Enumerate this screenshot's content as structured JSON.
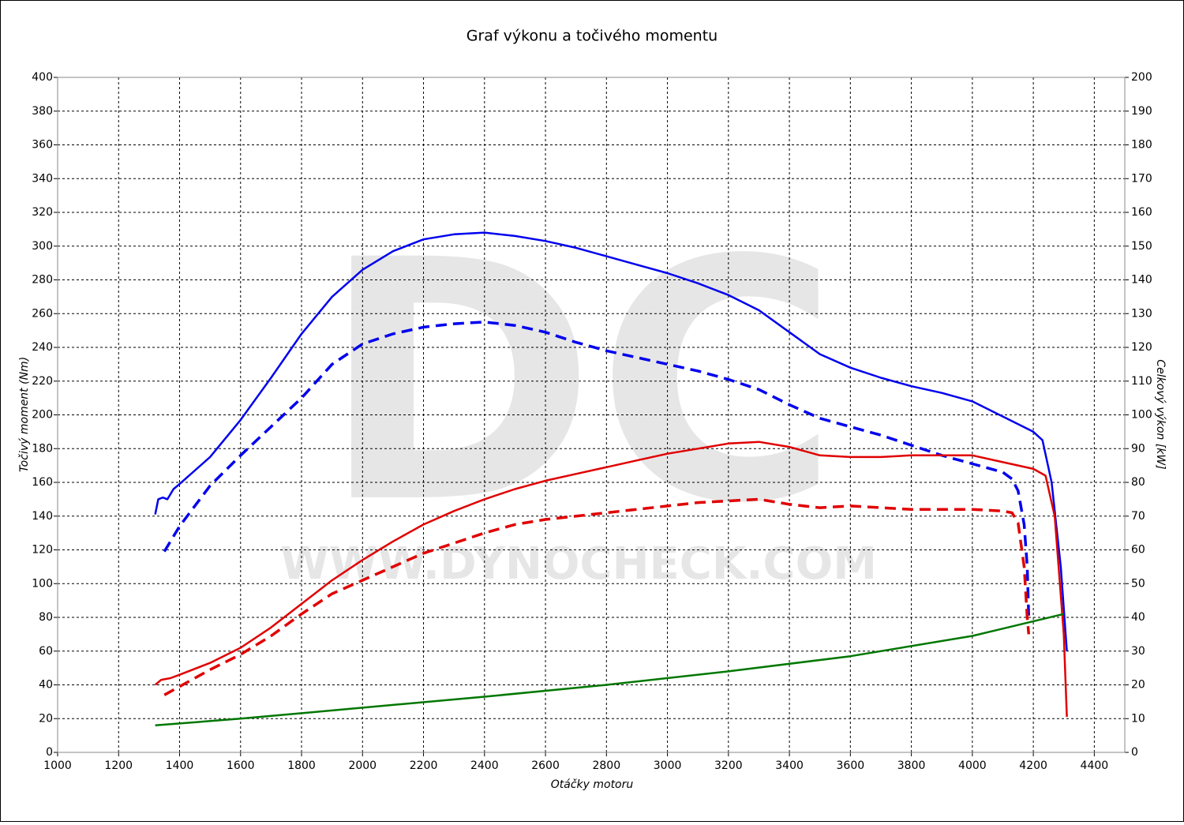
{
  "chart_data": {
    "type": "line",
    "title": "Graf výkonu a točivého momentu",
    "xlabel": "Otáčky motoru",
    "ylabel": "Točivý moment (Nm)",
    "y2label": "Celkový výkon [kW]",
    "watermark": [
      "DC",
      "WWW.DYNOCHECK.COM"
    ],
    "xlim": [
      1000,
      4500
    ],
    "ylim": [
      0,
      400
    ],
    "y2lim": [
      0,
      200
    ],
    "xticks": [
      1000,
      1200,
      1400,
      1600,
      1800,
      2000,
      2200,
      2400,
      2600,
      2800,
      3000,
      3200,
      3400,
      3600,
      3800,
      4000,
      4200,
      4400
    ],
    "yticks": [
      0,
      20,
      40,
      60,
      80,
      100,
      120,
      140,
      160,
      180,
      200,
      220,
      240,
      260,
      280,
      300,
      320,
      340,
      360,
      380,
      400
    ],
    "y2ticks": [
      0,
      10,
      20,
      30,
      40,
      50,
      60,
      70,
      80,
      90,
      100,
      110,
      120,
      130,
      140,
      150,
      160,
      170,
      180,
      190,
      200
    ],
    "grid": true,
    "series": [
      {
        "color": "#0000ee",
        "dashed": false,
        "axis": "y",
        "x": [
          1320,
          1330,
          1345,
          1360,
          1380,
          1400,
          1450,
          1500,
          1600,
          1700,
          1800,
          1900,
          2000,
          2100,
          2200,
          2300,
          2400,
          2500,
          2600,
          2700,
          2800,
          2900,
          3000,
          3100,
          3200,
          3300,
          3400,
          3500,
          3600,
          3700,
          3800,
          3900,
          4000,
          4100,
          4200,
          4230,
          4260,
          4290,
          4310
        ],
        "values": [
          141,
          150,
          151,
          150,
          156,
          159,
          167,
          175,
          197,
          222,
          248,
          270,
          286,
          297,
          304,
          307,
          308,
          306,
          303,
          299,
          294,
          289,
          284,
          278,
          271,
          262,
          249,
          236,
          228,
          222,
          217,
          213,
          208,
          199,
          190,
          185,
          160,
          110,
          60
        ]
      },
      {
        "color": "#0000ee",
        "dashed": true,
        "axis": "y",
        "x": [
          1350,
          1400,
          1500,
          1600,
          1700,
          1800,
          1900,
          2000,
          2100,
          2200,
          2300,
          2400,
          2500,
          2600,
          2700,
          2800,
          2900,
          3000,
          3100,
          3200,
          3300,
          3400,
          3500,
          3600,
          3700,
          3800,
          3900,
          4000,
          4100,
          4130,
          4150,
          4170,
          4180,
          4185
        ],
        "values": [
          119,
          134,
          158,
          176,
          193,
          210,
          230,
          242,
          248,
          252,
          254,
          255,
          253,
          249,
          243,
          238,
          234,
          230,
          226,
          221,
          215,
          206,
          198,
          193,
          188,
          182,
          176,
          171,
          166,
          162,
          155,
          135,
          110,
          80
        ]
      },
      {
        "color": "#e00000",
        "dashed": false,
        "axis": "y2",
        "x": [
          1320,
          1340,
          1370,
          1400,
          1500,
          1600,
          1700,
          1800,
          1900,
          2000,
          2100,
          2200,
          2300,
          2400,
          2500,
          2600,
          2700,
          2800,
          2900,
          3000,
          3100,
          3200,
          3300,
          3400,
          3500,
          3600,
          3700,
          3800,
          3900,
          4000,
          4100,
          4200,
          4240,
          4270,
          4300,
          4310
        ],
        "values": [
          20,
          21.5,
          22,
          23,
          26.5,
          31,
          37,
          44,
          51,
          57,
          62.5,
          67.5,
          71.5,
          75,
          78,
          80.5,
          82.5,
          84.5,
          86.5,
          88.5,
          90,
          91.5,
          92,
          90.5,
          88,
          87.5,
          87.5,
          88,
          88,
          88,
          86,
          84,
          82,
          70,
          35,
          10.5
        ]
      },
      {
        "color": "#e00000",
        "dashed": true,
        "axis": "y2",
        "x": [
          1350,
          1400,
          1500,
          1600,
          1700,
          1800,
          1900,
          2000,
          2100,
          2200,
          2300,
          2400,
          2500,
          2600,
          2700,
          2800,
          2900,
          3000,
          3100,
          3200,
          3300,
          3400,
          3500,
          3600,
          3700,
          3800,
          3900,
          4000,
          4100,
          4130,
          4150,
          4170,
          4180,
          4185
        ],
        "values": [
          17,
          19.5,
          24.5,
          29,
          34.5,
          41,
          47,
          51,
          55,
          59,
          62,
          65,
          67.5,
          69,
          70,
          71,
          72,
          73,
          74,
          74.5,
          75,
          73.5,
          72.5,
          73,
          72.5,
          72,
          72,
          72,
          71.5,
          71,
          68,
          55,
          40,
          35
        ]
      },
      {
        "color": "#007700",
        "dashed": false,
        "axis": "y",
        "x": [
          1320,
          1600,
          2000,
          2400,
          2800,
          3200,
          3600,
          4000,
          4300
        ],
        "values": [
          16,
          20,
          26.5,
          33,
          40,
          48,
          57,
          69,
          82
        ]
      }
    ]
  }
}
